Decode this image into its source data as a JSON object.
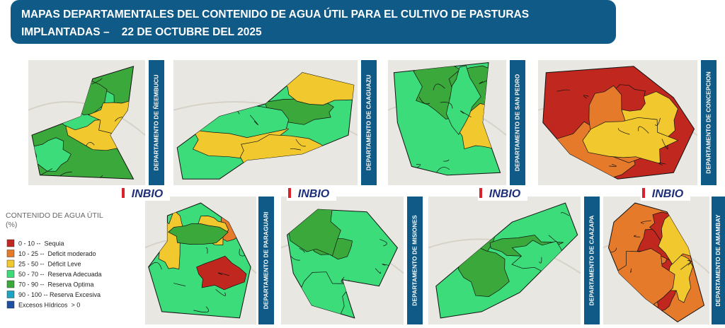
{
  "header": {
    "title": [
      "MAPAS DEPARTAMENTALES DEL CONTENIDO DE AGUA ÚTIL PARA EL CULTIVO DE PASTURAS",
      "IMPLANTADAS –    22 DE OCTUBRE DEL 2025"
    ]
  },
  "maps": [
    {
      "label": "DEPARTAMENTO DE ÑEEMBUCU"
    },
    {
      "label": "DEPARTAMENTO DE CAAGUAZU"
    },
    {
      "label": "DEPARTAMENTO DE SAN PEDRO"
    },
    {
      "label": "DEPARTAMENTO DE CONCEPCION"
    },
    {
      "label": "DEPARTAMENTO DE PARAGUARI"
    },
    {
      "label": "DEPARTAMENTO DE MISIONES"
    },
    {
      "label": "DEPARTAMENTO DE CAAZAPA"
    },
    {
      "label": "DEPARTAMENTO DE AMAMBAY"
    }
  ],
  "logo": "INBIO",
  "legend": {
    "title": "CONTENIDO DE AGUA ÚTIL (%)",
    "items": [
      {
        "label": "0 - 10 --  Sequia",
        "color": "#c0271f"
      },
      {
        "label": "10 - 25 --  Deficit moderado",
        "color": "#e57a2a"
      },
      {
        "label": "25 - 50 --  Déficit Leve",
        "color": "#f1c92f"
      },
      {
        "label": "50 - 70 --  Reserva Adecuada",
        "color": "#3ddc7a"
      },
      {
        "label": "70 - 90 --  Reserva Optima",
        "color": "#3aa83a"
      },
      {
        "label": "90 - 100 -- Reserva Excesiva",
        "color": "#1fa3c2"
      },
      {
        "label": "Excesos Hídricos  > 0",
        "color": "#1f4fa0"
      }
    ]
  }
}
